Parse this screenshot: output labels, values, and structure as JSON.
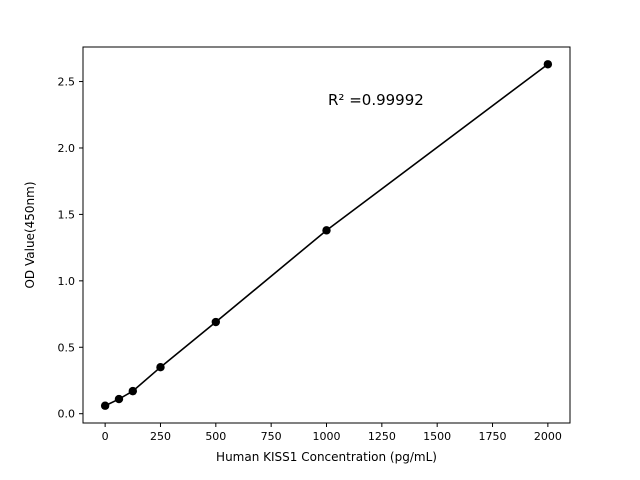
{
  "chart_data": {
    "type": "scatter",
    "x": [
      0,
      62.5,
      125,
      250,
      500,
      1000,
      2000
    ],
    "y": [
      0.06,
      0.11,
      0.17,
      0.35,
      0.69,
      1.38,
      2.63
    ],
    "title": "",
    "xlabel": "Human KISS1 Concentration (pg/mL)",
    "ylabel": "OD Value(450nm)",
    "annotation": "R² =0.99992",
    "xticks": [
      0,
      250,
      500,
      750,
      1000,
      1250,
      1500,
      1750,
      2000
    ],
    "yticks": [
      0.0,
      0.5,
      1.0,
      1.5,
      2.0,
      2.5
    ],
    "xlim": [
      -100,
      2100
    ],
    "ylim": [
      -0.07,
      2.76
    ],
    "grid": false,
    "legend_position": "none",
    "line_color": "#000000",
    "marker_color": "#000000",
    "background_color": "#ffffff"
  }
}
